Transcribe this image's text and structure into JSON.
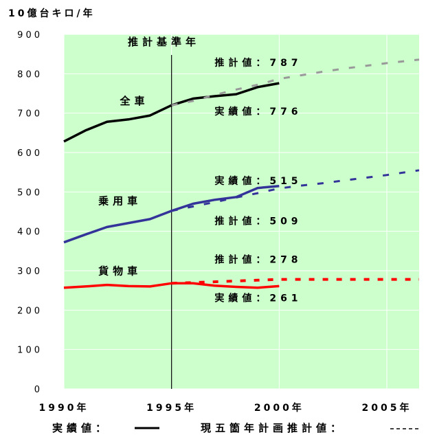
{
  "chart_data": {
    "type": "line",
    "ylabel": "10億台キロ/年",
    "ylim": [
      0,
      900
    ],
    "yticks": [
      0,
      100,
      200,
      300,
      400,
      500,
      600,
      700,
      800,
      900
    ],
    "xlim": [
      1990,
      2006.5
    ],
    "xticks": [
      {
        "value": 1990,
        "label": "1990年"
      },
      {
        "value": 1995,
        "label": "1995年"
      },
      {
        "value": 2000,
        "label": "2000年"
      },
      {
        "value": 2005,
        "label": "2005年"
      }
    ],
    "base_year": {
      "value": 1995,
      "label": "推計基準年"
    },
    "grid": true,
    "colors": {
      "plot_bg": "#ccffcc",
      "grid": "#ffffff",
      "total": "#000000",
      "total_plan": "#999999",
      "passenger": "#333399",
      "freight": "#ff0000"
    },
    "series": [
      {
        "name": "全車",
        "kind": "actual",
        "color_key": "total",
        "x": [
          1990,
          1991,
          1992,
          1993,
          1994,
          1995,
          1996,
          1997,
          1998,
          1999,
          2000
        ],
        "y": [
          628,
          656,
          678,
          684,
          694,
          720,
          737,
          743,
          748,
          766,
          776
        ]
      },
      {
        "name": "全車",
        "kind": "plan",
        "color_key": "total_plan",
        "x": [
          1995,
          1996,
          1997,
          1998,
          1999,
          2000,
          2001,
          2002,
          2003,
          2004,
          2005,
          2006.5
        ],
        "y": [
          720,
          731,
          746,
          760,
          772,
          787,
          796,
          805,
          813,
          820,
          827,
          836
        ]
      },
      {
        "name": "乗用車",
        "kind": "actual",
        "color_key": "passenger",
        "x": [
          1990,
          1991,
          1992,
          1993,
          1994,
          1995,
          1996,
          1997,
          1998,
          1999,
          2000
        ],
        "y": [
          372,
          392,
          411,
          421,
          431,
          452,
          470,
          480,
          487,
          510,
          515
        ]
      },
      {
        "name": "乗用車",
        "kind": "plan",
        "color_key": "passenger",
        "x": [
          1995,
          1996,
          1997,
          1998,
          1999,
          2000,
          2001,
          2002,
          2003,
          2004,
          2005,
          2006.5
        ],
        "y": [
          452,
          463,
          474,
          486,
          497,
          509,
          516,
          522,
          529,
          536,
          543,
          555
        ]
      },
      {
        "name": "貨物車",
        "kind": "actual",
        "color_key": "freight",
        "x": [
          1990,
          1991,
          1992,
          1993,
          1994,
          1995,
          1996,
          1997,
          1998,
          1999,
          2000
        ],
        "y": [
          257,
          260,
          264,
          261,
          260,
          268,
          268,
          262,
          259,
          257,
          261
        ]
      },
      {
        "name": "貨物車",
        "kind": "plan",
        "color_key": "freight",
        "x": [
          1995,
          1996,
          1997,
          1998,
          1999,
          2000,
          2001,
          2002,
          2003,
          2004,
          2005,
          2006.5
        ],
        "y": [
          268,
          270,
          272,
          274,
          276,
          278,
          278,
          278,
          278,
          278,
          278,
          278
        ]
      }
    ],
    "annotations": [
      {
        "text": "全車",
        "x": 1992.6,
        "y": 722,
        "style": "label"
      },
      {
        "text": "推計値：787",
        "x": 1997.0,
        "y": 820,
        "style": "value"
      },
      {
        "text": "実績値：776",
        "x": 1997.0,
        "y": 696,
        "style": "value"
      },
      {
        "text": "乗用車",
        "x": 1991.6,
        "y": 468,
        "style": "label"
      },
      {
        "text": "実績値：515",
        "x": 1997.0,
        "y": 520,
        "style": "value"
      },
      {
        "text": "推計値：509",
        "x": 1997.0,
        "y": 418,
        "style": "value"
      },
      {
        "text": "貨物車",
        "x": 1991.6,
        "y": 290,
        "style": "label"
      },
      {
        "text": "推計値：278",
        "x": 1997.0,
        "y": 320,
        "style": "value"
      },
      {
        "text": "実績値：261",
        "x": 1997.0,
        "y": 222,
        "style": "value"
      }
    ],
    "legend": {
      "placement": "bottom",
      "actual": "実績値：",
      "plan": "現五箇年計画推計値："
    }
  }
}
